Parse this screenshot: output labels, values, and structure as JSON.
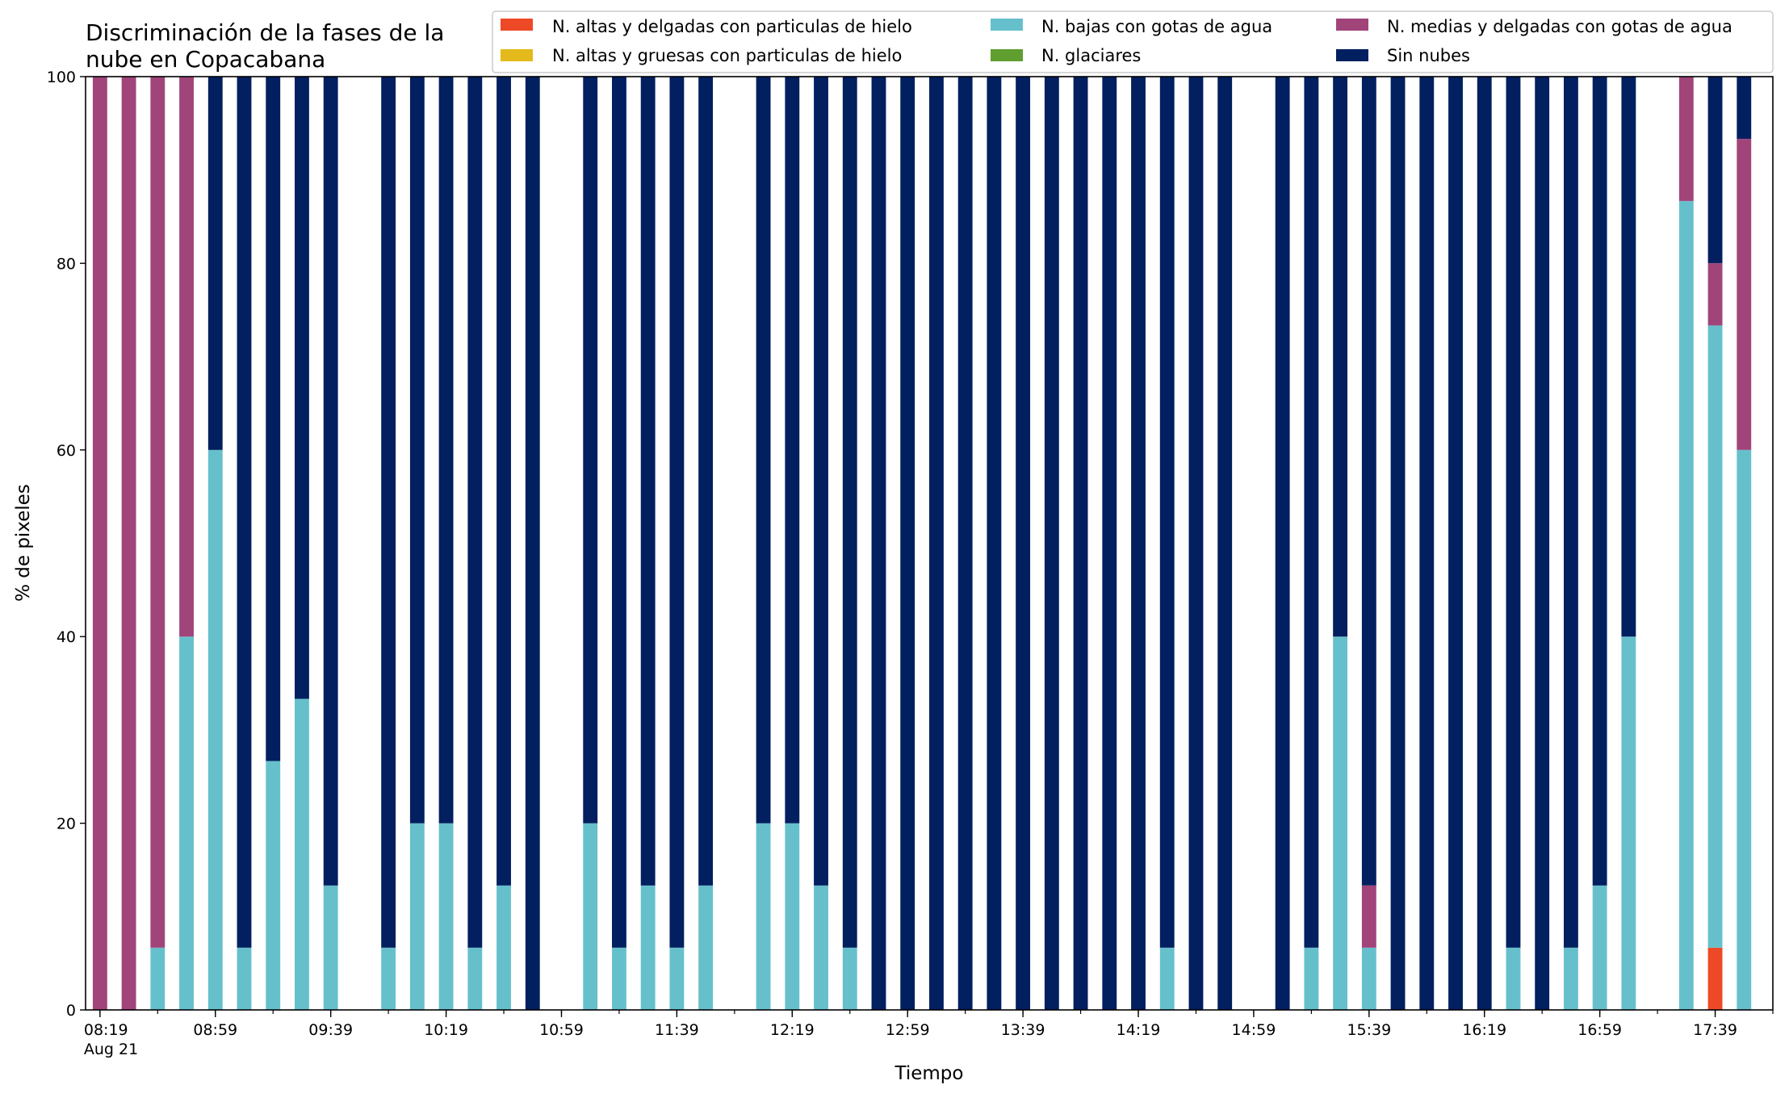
{
  "chart_data": {
    "type": "bar",
    "stacked": true,
    "title_lines": [
      "Discriminación de la fases de la",
      "nube en Copacabana"
    ],
    "xlabel": "Tiempo",
    "ylabel": "% de pixeles",
    "ylim": [
      0,
      100
    ],
    "yticks": [
      0,
      20,
      40,
      60,
      80,
      100
    ],
    "xlim": [
      "08:14",
      "17:59"
    ],
    "bar_interval_minutes": 10,
    "bar_width_minutes": 5,
    "x_major_ticks": [
      "08:19",
      "08:59",
      "09:39",
      "10:19",
      "10:59",
      "11:39",
      "12:19",
      "12:59",
      "13:39",
      "14:19",
      "14:59",
      "15:39",
      "16:19",
      "16:59",
      "17:39"
    ],
    "x_first_tick_sublabel": "Aug 21",
    "legend_position": "top-right",
    "legend": [
      {
        "name": "N. altas y delgadas con particulas de hielo",
        "color": "#ee4927"
      },
      {
        "name": "N. altas y gruesas con particulas de hielo",
        "color": "#e4b91b"
      },
      {
        "name": "N. bajas con gotas de agua",
        "color": "#66c0cc"
      },
      {
        "name": "N. glaciares",
        "color": "#5f9e2f"
      },
      {
        "name": "N. medias y delgadas con gotas de agua",
        "color": "#a1447a"
      },
      {
        "name": "Sin nubes",
        "color": "#021f5f"
      }
    ],
    "series_order": [
      "N. altas y delgadas con particulas de hielo",
      "N. altas y gruesas con particulas de hielo",
      "N. bajas con gotas de agua",
      "N. glaciares",
      "N. medias y delgadas con gotas de agua",
      "Sin nubes"
    ],
    "bars": [
      {
        "time": "08:19",
        "values": [
          0,
          0,
          0,
          0,
          100,
          0
        ]
      },
      {
        "time": "08:29",
        "values": [
          0,
          0,
          0,
          0,
          100,
          0
        ]
      },
      {
        "time": "08:39",
        "values": [
          0,
          0,
          6.67,
          0,
          93.33,
          0
        ]
      },
      {
        "time": "08:49",
        "values": [
          0,
          0,
          40,
          0,
          60,
          0
        ]
      },
      {
        "time": "08:59",
        "values": [
          0,
          0,
          60,
          0,
          0,
          40
        ]
      },
      {
        "time": "09:09",
        "values": [
          0,
          0,
          6.67,
          0,
          0,
          93.33
        ]
      },
      {
        "time": "09:19",
        "values": [
          0,
          0,
          26.67,
          0,
          0,
          73.33
        ]
      },
      {
        "time": "09:29",
        "values": [
          0,
          0,
          33.33,
          0,
          0,
          66.67
        ]
      },
      {
        "time": "09:39",
        "values": [
          0,
          0,
          13.33,
          0,
          0,
          86.67
        ]
      },
      {
        "time": "09:59",
        "values": [
          0,
          0,
          6.67,
          0,
          0,
          93.33
        ]
      },
      {
        "time": "10:09",
        "values": [
          0,
          0,
          20,
          0,
          0,
          80
        ]
      },
      {
        "time": "10:19",
        "values": [
          0,
          0,
          20,
          0,
          0,
          80
        ]
      },
      {
        "time": "10:29",
        "values": [
          0,
          0,
          6.67,
          0,
          0,
          93.33
        ]
      },
      {
        "time": "10:39",
        "values": [
          0,
          0,
          13.33,
          0,
          0,
          86.67
        ]
      },
      {
        "time": "10:49",
        "values": [
          0,
          0,
          0,
          0,
          0,
          100
        ]
      },
      {
        "time": "11:09",
        "values": [
          0,
          0,
          20,
          0,
          0,
          80
        ]
      },
      {
        "time": "11:19",
        "values": [
          0,
          0,
          6.67,
          0,
          0,
          93.33
        ]
      },
      {
        "time": "11:29",
        "values": [
          0,
          0,
          13.33,
          0,
          0,
          86.67
        ]
      },
      {
        "time": "11:39",
        "values": [
          0,
          0,
          6.67,
          0,
          0,
          93.33
        ]
      },
      {
        "time": "11:49",
        "values": [
          0,
          0,
          13.33,
          0,
          0,
          86.67
        ]
      },
      {
        "time": "12:09",
        "values": [
          0,
          0,
          20,
          0,
          0,
          80
        ]
      },
      {
        "time": "12:19",
        "values": [
          0,
          0,
          20,
          0,
          0,
          80
        ]
      },
      {
        "time": "12:29",
        "values": [
          0,
          0,
          13.33,
          0,
          0,
          86.67
        ]
      },
      {
        "time": "12:39",
        "values": [
          0,
          0,
          6.67,
          0,
          0,
          93.33
        ]
      },
      {
        "time": "12:49",
        "values": [
          0,
          0,
          0,
          0,
          0,
          100
        ]
      },
      {
        "time": "12:59",
        "values": [
          0,
          0,
          0,
          0,
          0,
          100
        ]
      },
      {
        "time": "13:09",
        "values": [
          0,
          0,
          0,
          0,
          0,
          100
        ]
      },
      {
        "time": "13:19",
        "values": [
          0,
          0,
          0,
          0,
          0,
          100
        ]
      },
      {
        "time": "13:29",
        "values": [
          0,
          0,
          0,
          0,
          0,
          100
        ]
      },
      {
        "time": "13:39",
        "values": [
          0,
          0,
          0,
          0,
          0,
          100
        ]
      },
      {
        "time": "13:49",
        "values": [
          0,
          0,
          0,
          0,
          0,
          100
        ]
      },
      {
        "time": "13:59",
        "values": [
          0,
          0,
          0,
          0,
          0,
          100
        ]
      },
      {
        "time": "14:09",
        "values": [
          0,
          0,
          0,
          0,
          0,
          100
        ]
      },
      {
        "time": "14:19",
        "values": [
          0,
          0,
          0,
          0,
          0,
          100
        ]
      },
      {
        "time": "14:29",
        "values": [
          0,
          0,
          6.67,
          0,
          0,
          93.33
        ]
      },
      {
        "time": "14:39",
        "values": [
          0,
          0,
          0,
          0,
          0,
          100
        ]
      },
      {
        "time": "14:49",
        "values": [
          0,
          0,
          0,
          0,
          0,
          100
        ]
      },
      {
        "time": "15:09",
        "values": [
          0,
          0,
          0,
          0,
          0,
          100
        ]
      },
      {
        "time": "15:19",
        "values": [
          0,
          0,
          6.67,
          0,
          0,
          93.33
        ]
      },
      {
        "time": "15:29",
        "values": [
          0,
          0,
          40,
          0,
          0,
          60
        ]
      },
      {
        "time": "15:39",
        "values": [
          0,
          0,
          6.67,
          0,
          6.67,
          86.66
        ]
      },
      {
        "time": "15:49",
        "values": [
          0,
          0,
          0,
          0,
          0,
          100
        ]
      },
      {
        "time": "15:59",
        "values": [
          0,
          0,
          0,
          0,
          0,
          100
        ]
      },
      {
        "time": "16:09",
        "values": [
          0,
          0,
          0,
          0,
          0,
          100
        ]
      },
      {
        "time": "16:19",
        "values": [
          0,
          0,
          0,
          0,
          0,
          100
        ]
      },
      {
        "time": "16:29",
        "values": [
          0,
          0,
          6.67,
          0,
          0,
          93.33
        ]
      },
      {
        "time": "16:39",
        "values": [
          0,
          0,
          0,
          0,
          0,
          100
        ]
      },
      {
        "time": "16:49",
        "values": [
          0,
          0,
          6.67,
          0,
          0,
          93.33
        ]
      },
      {
        "time": "16:59",
        "values": [
          0,
          0,
          13.33,
          0,
          0,
          86.67
        ]
      },
      {
        "time": "17:09",
        "values": [
          0,
          0,
          40,
          0,
          0,
          60
        ]
      },
      {
        "time": "17:29",
        "values": [
          0,
          0,
          86.67,
          0,
          13.33,
          0
        ]
      },
      {
        "time": "17:39",
        "values": [
          6.67,
          0,
          66.67,
          0,
          6.67,
          20
        ]
      },
      {
        "time": "17:49",
        "values": [
          0,
          0,
          60,
          0,
          33.33,
          6.67
        ]
      }
    ]
  }
}
